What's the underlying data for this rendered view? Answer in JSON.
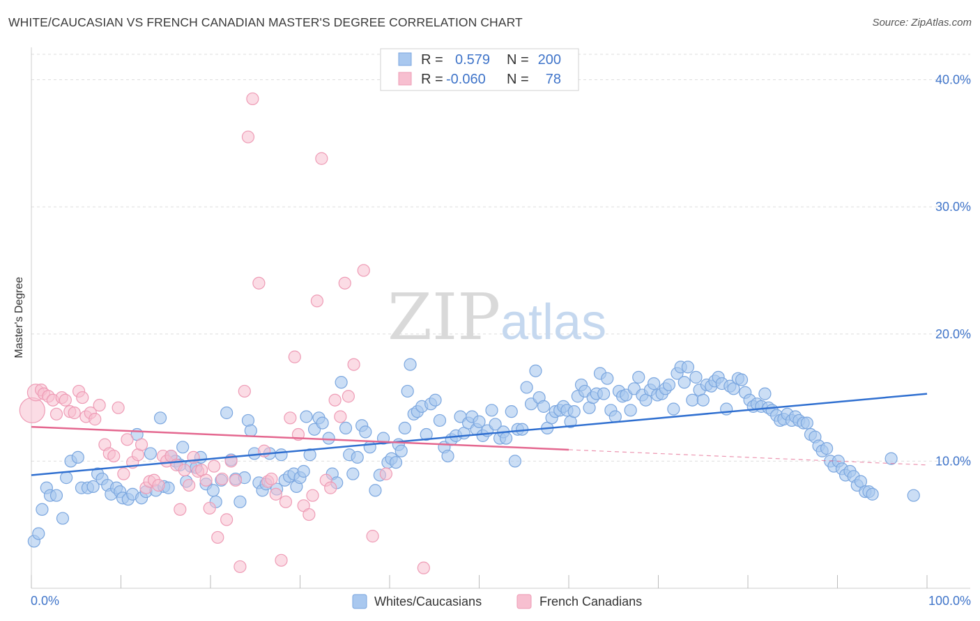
{
  "title": "WHITE/CAUCASIAN VS FRENCH CANADIAN MASTER'S DEGREE CORRELATION CHART",
  "source": "Source: ZipAtlas.com",
  "watermark": {
    "zip": "ZIP",
    "atlas": "atlas"
  },
  "colors": {
    "blue_fill": "#a9c8ef",
    "blue_stroke": "#7aa6df",
    "blue_line": "#2f6fd0",
    "pink_fill": "#f7bfd0",
    "pink_stroke": "#ee9bb5",
    "pink_line": "#e4678f",
    "grid": "#dddddd",
    "tick_text": "#3f74c9"
  },
  "legend": {
    "rows": [
      {
        "r_label": "R =",
        "r_value": "0.579",
        "n_label": "N =",
        "n_value": "200"
      },
      {
        "r_label": "R =",
        "r_value": "-0.060",
        "n_label": "N =",
        "n_value": "78"
      }
    ]
  },
  "bottom_legend": [
    "Whites/Caucasians",
    "French Canadians"
  ],
  "chart_data": {
    "type": "scatter",
    "title": "WHITE/CAUCASIAN VS FRENCH CANADIAN MASTER'S DEGREE CORRELATION CHART",
    "xlabel": "",
    "ylabel": "Master's Degree",
    "xlim": [
      0,
      100
    ],
    "ylim": [
      0,
      42
    ],
    "x_tick_labels": [
      "0.0%",
      "100.0%"
    ],
    "y_ticks": [
      10,
      20,
      30,
      40
    ],
    "y_tick_labels": [
      "10.0%",
      "20.0%",
      "30.0%",
      "40.0%"
    ],
    "grid": true,
    "legend_position": "top-center",
    "series": [
      {
        "name": "Whites/Caucasians",
        "R": 0.579,
        "N": 200,
        "trend": {
          "x": [
            0,
            100
          ],
          "y": [
            8.9,
            15.3
          ],
          "dashed_after": null
        },
        "points": [
          [
            0.3,
            3.7
          ],
          [
            0.8,
            4.3
          ],
          [
            1.2,
            6.2
          ],
          [
            1.7,
            7.9
          ],
          [
            2.1,
            7.3
          ],
          [
            2.8,
            7.3
          ],
          [
            3.5,
            5.5
          ],
          [
            3.9,
            8.7
          ],
          [
            4.4,
            10.0
          ],
          [
            5.2,
            10.3
          ],
          [
            5.6,
            7.9
          ],
          [
            6.3,
            7.9
          ],
          [
            6.9,
            8.0
          ],
          [
            7.4,
            9.0
          ],
          [
            7.9,
            8.6
          ],
          [
            8.5,
            8.1
          ],
          [
            8.9,
            7.4
          ],
          [
            9.5,
            7.9
          ],
          [
            9.9,
            7.6
          ],
          [
            10.2,
            7.1
          ],
          [
            10.8,
            7.0
          ],
          [
            11.3,
            7.4
          ],
          [
            11.8,
            12.1
          ],
          [
            12.3,
            7.1
          ],
          [
            12.8,
            7.6
          ],
          [
            13.3,
            10.6
          ],
          [
            13.9,
            7.7
          ],
          [
            14.4,
            13.4
          ],
          [
            14.8,
            8.0
          ],
          [
            15.3,
            7.9
          ],
          [
            15.6,
            10.4
          ],
          [
            16.1,
            10.0
          ],
          [
            16.6,
            9.7
          ],
          [
            16.9,
            11.1
          ],
          [
            17.3,
            8.4
          ],
          [
            17.8,
            9.6
          ],
          [
            18.4,
            9.5
          ],
          [
            18.9,
            10.3
          ],
          [
            19.5,
            8.2
          ],
          [
            20.3,
            7.7
          ],
          [
            20.6,
            6.8
          ],
          [
            21.2,
            8.5
          ],
          [
            21.8,
            13.8
          ],
          [
            22.3,
            10.1
          ],
          [
            22.8,
            8.6
          ],
          [
            23.3,
            6.8
          ],
          [
            23.8,
            8.7
          ],
          [
            24.2,
            13.2
          ],
          [
            24.5,
            12.4
          ],
          [
            24.9,
            10.6
          ],
          [
            25.4,
            8.3
          ],
          [
            25.8,
            7.7
          ],
          [
            26.2,
            8.2
          ],
          [
            26.6,
            10.6
          ],
          [
            27.4,
            7.8
          ],
          [
            27.9,
            10.5
          ],
          [
            28.3,
            8.5
          ],
          [
            28.8,
            8.8
          ],
          [
            29.3,
            9.0
          ],
          [
            29.6,
            8.0
          ],
          [
            30.0,
            8.7
          ],
          [
            30.4,
            9.2
          ],
          [
            30.7,
            13.5
          ],
          [
            31.1,
            10.5
          ],
          [
            31.6,
            12.5
          ],
          [
            32.1,
            13.4
          ],
          [
            32.5,
            13.0
          ],
          [
            33.2,
            11.8
          ],
          [
            33.6,
            9.0
          ],
          [
            34.1,
            8.3
          ],
          [
            34.6,
            16.2
          ],
          [
            35.1,
            12.6
          ],
          [
            35.5,
            10.5
          ],
          [
            35.9,
            9.0
          ],
          [
            36.4,
            10.3
          ],
          [
            36.9,
            12.8
          ],
          [
            37.3,
            12.3
          ],
          [
            37.8,
            11.1
          ],
          [
            38.4,
            7.7
          ],
          [
            38.9,
            8.9
          ],
          [
            39.3,
            11.8
          ],
          [
            39.8,
            9.9
          ],
          [
            40.2,
            10.2
          ],
          [
            40.7,
            9.9
          ],
          [
            41.0,
            11.3
          ],
          [
            41.3,
            10.8
          ],
          [
            41.7,
            12.6
          ],
          [
            42.0,
            15.5
          ],
          [
            42.3,
            17.6
          ],
          [
            42.7,
            13.7
          ],
          [
            43.1,
            13.9
          ],
          [
            43.6,
            14.3
          ],
          [
            44.1,
            12.1
          ],
          [
            44.6,
            14.5
          ],
          [
            45.1,
            14.8
          ],
          [
            45.6,
            13.2
          ],
          [
            46.1,
            11.1
          ],
          [
            46.5,
            10.4
          ],
          [
            46.9,
            11.7
          ],
          [
            47.4,
            12.0
          ],
          [
            47.9,
            13.5
          ],
          [
            48.3,
            12.2
          ],
          [
            48.8,
            13.0
          ],
          [
            49.2,
            13.5
          ],
          [
            49.7,
            12.5
          ],
          [
            50.0,
            13.1
          ],
          [
            50.4,
            12.0
          ],
          [
            50.9,
            12.4
          ],
          [
            51.4,
            14.0
          ],
          [
            51.8,
            12.9
          ],
          [
            52.3,
            11.8
          ],
          [
            52.7,
            12.3
          ],
          [
            53.0,
            11.8
          ],
          [
            53.6,
            13.9
          ],
          [
            54.0,
            10.0
          ],
          [
            54.3,
            12.5
          ],
          [
            54.8,
            12.5
          ],
          [
            55.3,
            15.8
          ],
          [
            55.8,
            14.5
          ],
          [
            56.3,
            17.1
          ],
          [
            56.7,
            15.0
          ],
          [
            57.2,
            14.3
          ],
          [
            57.6,
            12.6
          ],
          [
            58.1,
            13.4
          ],
          [
            58.5,
            13.9
          ],
          [
            59.0,
            14.0
          ],
          [
            59.4,
            14.3
          ],
          [
            59.8,
            14.0
          ],
          [
            60.2,
            13.1
          ],
          [
            60.6,
            13.9
          ],
          [
            61.0,
            15.1
          ],
          [
            61.4,
            16.0
          ],
          [
            61.8,
            15.5
          ],
          [
            62.3,
            14.2
          ],
          [
            62.7,
            15.0
          ],
          [
            63.1,
            15.3
          ],
          [
            63.5,
            16.9
          ],
          [
            63.9,
            15.3
          ],
          [
            64.3,
            16.5
          ],
          [
            64.7,
            14.0
          ],
          [
            65.2,
            13.5
          ],
          [
            65.6,
            15.5
          ],
          [
            66.0,
            15.1
          ],
          [
            66.4,
            15.2
          ],
          [
            66.9,
            14.0
          ],
          [
            67.3,
            15.7
          ],
          [
            67.8,
            16.6
          ],
          [
            68.2,
            15.2
          ],
          [
            68.6,
            14.8
          ],
          [
            69.1,
            15.6
          ],
          [
            69.5,
            16.1
          ],
          [
            69.9,
            15.2
          ],
          [
            70.4,
            15.3
          ],
          [
            70.8,
            15.7
          ],
          [
            71.2,
            16.0
          ],
          [
            71.7,
            14.1
          ],
          [
            72.1,
            16.9
          ],
          [
            72.5,
            17.4
          ],
          [
            72.9,
            16.2
          ],
          [
            73.3,
            17.4
          ],
          [
            73.8,
            14.8
          ],
          [
            74.2,
            16.6
          ],
          [
            74.6,
            15.6
          ],
          [
            75.0,
            14.8
          ],
          [
            75.4,
            16.0
          ],
          [
            75.9,
            15.9
          ],
          [
            76.3,
            16.3
          ],
          [
            76.7,
            16.6
          ],
          [
            77.1,
            16.1
          ],
          [
            77.6,
            14.1
          ],
          [
            78.0,
            15.9
          ],
          [
            78.4,
            15.7
          ],
          [
            78.9,
            16.5
          ],
          [
            79.3,
            16.4
          ],
          [
            79.7,
            15.4
          ],
          [
            80.2,
            14.8
          ],
          [
            80.6,
            14.3
          ],
          [
            81.0,
            14.5
          ],
          [
            81.5,
            14.3
          ],
          [
            81.9,
            15.3
          ],
          [
            82.3,
            14.2
          ],
          [
            82.7,
            14.0
          ],
          [
            83.2,
            13.6
          ],
          [
            83.6,
            13.2
          ],
          [
            84.0,
            13.3
          ],
          [
            84.4,
            13.7
          ],
          [
            84.9,
            13.2
          ],
          [
            85.3,
            13.5
          ],
          [
            85.7,
            13.2
          ],
          [
            86.2,
            13.0
          ],
          [
            86.6,
            13.0
          ],
          [
            87.0,
            12.1
          ],
          [
            87.5,
            11.9
          ],
          [
            87.9,
            11.2
          ],
          [
            88.3,
            10.8
          ],
          [
            88.8,
            11.0
          ],
          [
            89.2,
            10.0
          ],
          [
            89.6,
            9.6
          ],
          [
            90.1,
            10.0
          ],
          [
            90.5,
            9.4
          ],
          [
            90.9,
            8.9
          ],
          [
            91.4,
            9.2
          ],
          [
            91.8,
            8.8
          ],
          [
            92.2,
            8.1
          ],
          [
            92.6,
            8.4
          ],
          [
            93.1,
            7.6
          ],
          [
            93.5,
            7.6
          ],
          [
            93.9,
            7.4
          ],
          [
            96.0,
            10.2
          ],
          [
            98.5,
            7.3
          ]
        ]
      },
      {
        "name": "French Canadians",
        "R": -0.06,
        "N": 78,
        "trend": {
          "x": [
            0,
            100
          ],
          "y": [
            12.7,
            9.7
          ],
          "solid_until_x": 60
        },
        "points": [
          [
            0.1,
            14.0
          ],
          [
            0.5,
            15.4
          ],
          [
            1.1,
            15.6
          ],
          [
            1.4,
            15.3
          ],
          [
            1.9,
            15.1
          ],
          [
            2.4,
            14.8
          ],
          [
            2.8,
            13.7
          ],
          [
            3.4,
            15.0
          ],
          [
            3.8,
            14.8
          ],
          [
            4.3,
            13.9
          ],
          [
            4.8,
            13.8
          ],
          [
            5.3,
            15.5
          ],
          [
            5.7,
            15.0
          ],
          [
            6.1,
            13.5
          ],
          [
            6.6,
            13.8
          ],
          [
            7.1,
            13.3
          ],
          [
            7.6,
            14.4
          ],
          [
            8.2,
            11.3
          ],
          [
            8.7,
            10.6
          ],
          [
            9.2,
            10.4
          ],
          [
            9.7,
            14.2
          ],
          [
            10.3,
            9.0
          ],
          [
            10.7,
            11.7
          ],
          [
            11.3,
            9.9
          ],
          [
            11.9,
            10.5
          ],
          [
            12.3,
            11.3
          ],
          [
            12.8,
            7.9
          ],
          [
            13.2,
            8.4
          ],
          [
            13.7,
            8.5
          ],
          [
            14.2,
            8.1
          ],
          [
            14.7,
            10.4
          ],
          [
            15.1,
            10.0
          ],
          [
            15.6,
            10.4
          ],
          [
            16.2,
            9.7
          ],
          [
            16.6,
            6.2
          ],
          [
            17.1,
            9.3
          ],
          [
            17.6,
            8.1
          ],
          [
            18.1,
            10.3
          ],
          [
            18.6,
            9.2
          ],
          [
            19.0,
            9.3
          ],
          [
            19.5,
            8.5
          ],
          [
            19.9,
            6.3
          ],
          [
            20.4,
            9.6
          ],
          [
            20.8,
            4.0
          ],
          [
            21.3,
            8.6
          ],
          [
            21.8,
            5.4
          ],
          [
            22.3,
            10.0
          ],
          [
            22.8,
            8.5
          ],
          [
            23.3,
            1.7
          ],
          [
            23.8,
            15.5
          ],
          [
            24.2,
            35.5
          ],
          [
            24.7,
            38.5
          ],
          [
            25.4,
            24.0
          ],
          [
            26.0,
            10.8
          ],
          [
            26.4,
            8.4
          ],
          [
            26.8,
            8.6
          ],
          [
            27.3,
            7.4
          ],
          [
            27.9,
            2.2
          ],
          [
            28.4,
            6.8
          ],
          [
            28.9,
            13.4
          ],
          [
            29.4,
            18.2
          ],
          [
            29.8,
            12.1
          ],
          [
            30.4,
            6.5
          ],
          [
            31.0,
            5.8
          ],
          [
            31.4,
            7.3
          ],
          [
            31.9,
            22.6
          ],
          [
            32.4,
            33.8
          ],
          [
            32.9,
            8.5
          ],
          [
            33.4,
            7.9
          ],
          [
            33.9,
            14.8
          ],
          [
            34.5,
            13.5
          ],
          [
            35.0,
            24.0
          ],
          [
            35.4,
            15.1
          ],
          [
            36.0,
            17.6
          ],
          [
            37.1,
            25.0
          ],
          [
            38.1,
            4.1
          ],
          [
            39.6,
            9.0
          ],
          [
            43.8,
            1.6
          ]
        ]
      }
    ]
  }
}
